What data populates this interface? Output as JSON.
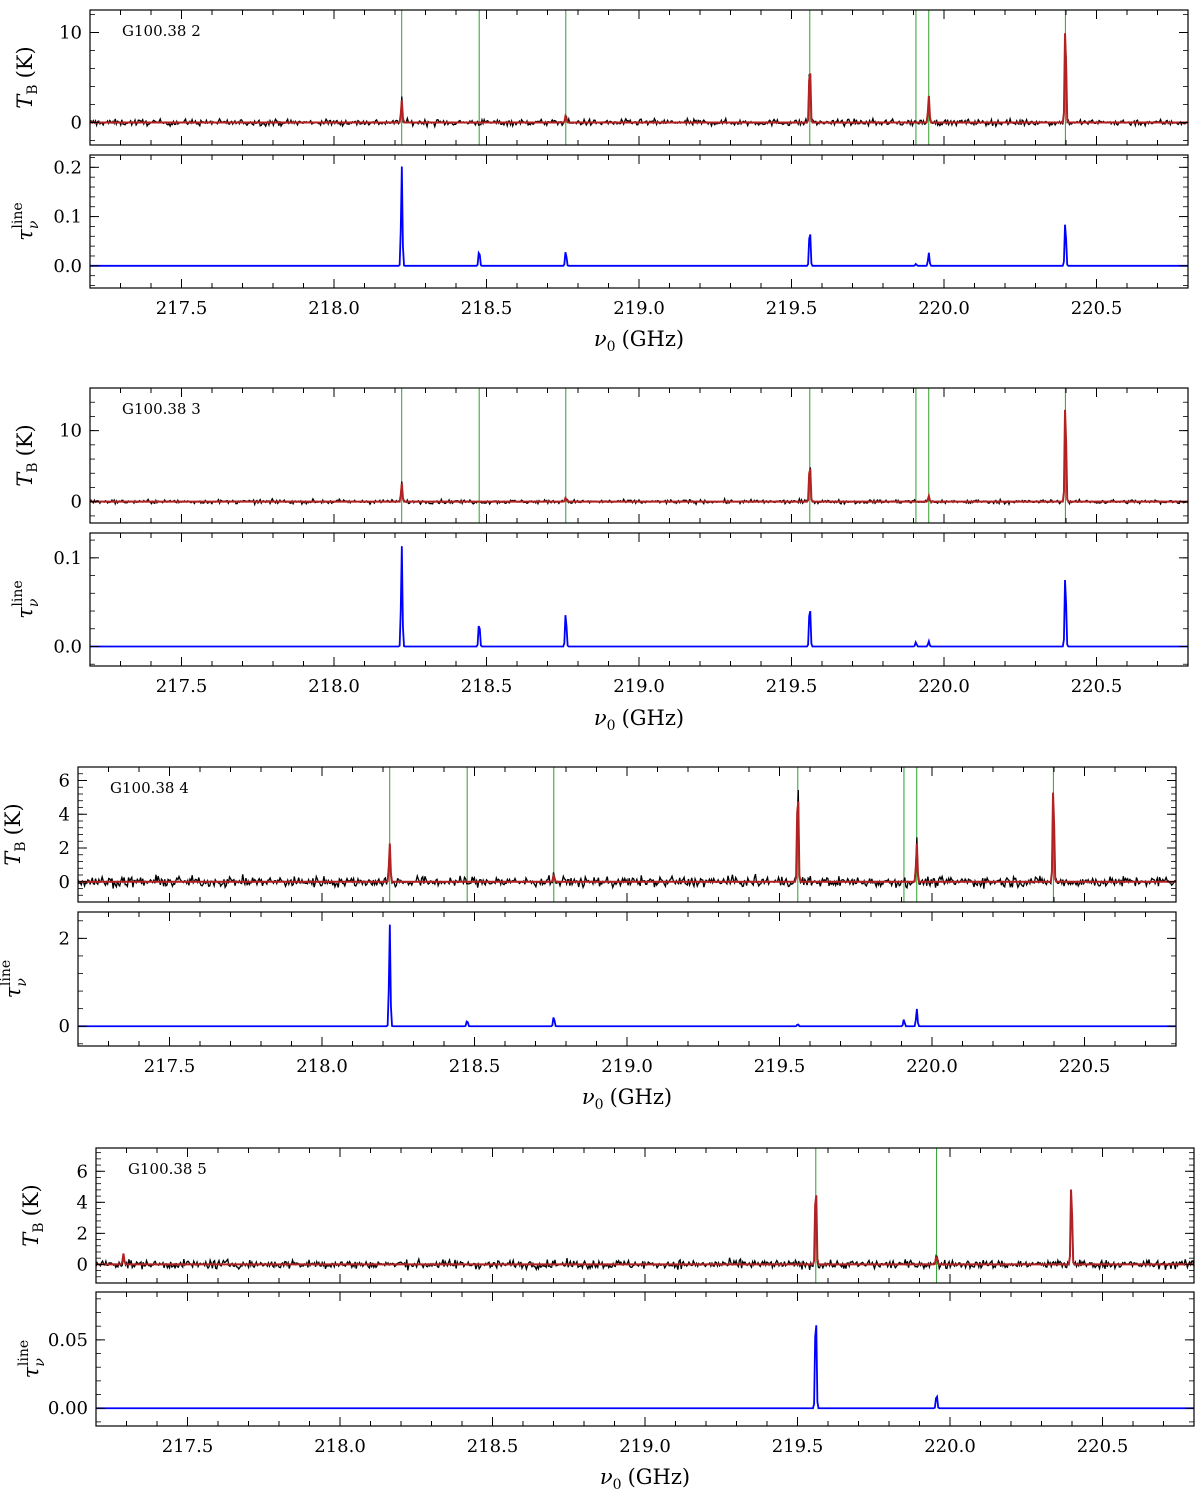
{
  "chart_data": [
    {
      "type": "line",
      "title": "G100.38 2",
      "xlabel_main": "ν",
      "xlabel_sub": "0",
      "xlabel_unit": "(GHz)",
      "xlim": [
        217.2,
        220.8
      ],
      "xticks": [
        "217.5",
        "218.0",
        "218.5",
        "219.0",
        "219.5",
        "220.0",
        "220.5"
      ],
      "top": {
        "ylabel_main": "T",
        "ylabel_sub": "B",
        "ylabel_unit": "(K)",
        "ylim": [
          -2.5,
          12.5
        ],
        "yticks": [
          "0",
          "10"
        ],
        "noise": 0.25,
        "vlines": [
          218.222,
          218.476,
          218.76,
          219.56,
          219.908,
          219.95,
          220.398
        ],
        "series": [
          {
            "color": "#b22222",
            "peaks": [
              [
                218.222,
                2.5
              ],
              [
                218.76,
                0.8
              ],
              [
                219.56,
                7.1
              ],
              [
                219.95,
                3.0
              ],
              [
                220.398,
                11.5
              ]
            ]
          }
        ]
      },
      "bottom": {
        "ylabel_main": "τ",
        "ylabel_sub": "ν",
        "ylabel_sup": "line",
        "ylim": [
          -0.045,
          0.225
        ],
        "yticks": [
          "0.0",
          "0.1",
          "0.2"
        ],
        "series": [
          {
            "color": "#0000ff",
            "peaks": [
              [
                218.222,
                0.205
              ],
              [
                218.476,
                0.034
              ],
              [
                218.76,
                0.032
              ],
              [
                219.56,
                0.083
              ],
              [
                219.908,
                0.004
              ],
              [
                219.95,
                0.027
              ],
              [
                220.398,
                0.097
              ]
            ]
          }
        ]
      }
    },
    {
      "type": "line",
      "title": "G100.38 3",
      "xlabel_main": "ν",
      "xlabel_sub": "0",
      "xlabel_unit": "(GHz)",
      "xlim": [
        217.2,
        220.8
      ],
      "xticks": [
        "217.5",
        "218.0",
        "218.5",
        "219.0",
        "219.5",
        "220.0",
        "220.5"
      ],
      "top": {
        "ylabel_main": "T",
        "ylabel_sub": "B",
        "ylabel_unit": "(K)",
        "ylim": [
          -3,
          16
        ],
        "yticks": [
          "0",
          "10"
        ],
        "noise": 0.2,
        "vlines": [
          218.222,
          218.476,
          218.76,
          219.56,
          219.908,
          219.95,
          220.398
        ],
        "series": [
          {
            "color": "#b22222",
            "peaks": [
              [
                218.222,
                2.6
              ],
              [
                218.76,
                0.6
              ],
              [
                219.56,
                6.0
              ],
              [
                219.95,
                0.8
              ],
              [
                220.398,
                15.0
              ]
            ]
          }
        ]
      },
      "bottom": {
        "ylabel_main": "τ",
        "ylabel_sub": "ν",
        "ylabel_sup": "line",
        "ylim": [
          -0.022,
          0.128
        ],
        "yticks": [
          "0.0",
          "0.1"
        ],
        "series": [
          {
            "color": "#0000ff",
            "peaks": [
              [
                218.222,
                0.115
              ],
              [
                218.476,
                0.03
              ],
              [
                218.76,
                0.041
              ],
              [
                219.56,
                0.052
              ],
              [
                219.908,
                0.005
              ],
              [
                219.95,
                0.006
              ],
              [
                220.398,
                0.087
              ]
            ]
          }
        ]
      }
    },
    {
      "type": "line",
      "title": "G100.38 4",
      "xlabel_main": "ν",
      "xlabel_sub": "0",
      "xlabel_unit": "(GHz)",
      "xlim": [
        217.2,
        220.8
      ],
      "xticks": [
        "217.5",
        "218.0",
        "218.5",
        "219.0",
        "219.5",
        "220.0",
        "220.5"
      ],
      "top": {
        "ylabel_main": "T",
        "ylabel_sub": "B",
        "ylabel_unit": "(K)",
        "ylim": [
          -1.2,
          6.8
        ],
        "yticks": [
          "0",
          "2",
          "4",
          "6"
        ],
        "noise": 0.22,
        "vlines": [
          218.222,
          218.476,
          218.76,
          219.56,
          219.908,
          219.95,
          220.398
        ],
        "series": [
          {
            "color": "#b22222",
            "peaks": [
              [
                218.222,
                2.3
              ],
              [
                218.76,
                0.4
              ],
              [
                219.56,
                6.2
              ],
              [
                219.95,
                2.3
              ],
              [
                220.398,
                6.1
              ]
            ]
          }
        ]
      },
      "bottom": {
        "ylabel_main": "τ",
        "ylabel_sub": "ν",
        "ylabel_sup": "line",
        "ylim": [
          -0.45,
          2.6
        ],
        "yticks": [
          "0",
          "2"
        ],
        "series": [
          {
            "color": "#0000ff",
            "peaks": [
              [
                218.222,
                2.35
              ],
              [
                218.476,
                0.14
              ],
              [
                218.76,
                0.23
              ],
              [
                219.56,
                0.05
              ],
              [
                219.908,
                0.16
              ],
              [
                219.95,
                0.4
              ]
            ]
          }
        ]
      }
    },
    {
      "type": "line",
      "title": "G100.38 5",
      "xlabel_main": "ν",
      "xlabel_sub": "0",
      "xlabel_unit": "(GHz)",
      "xlim": [
        217.2,
        220.8
      ],
      "xticks": [
        "217.5",
        "218.0",
        "218.5",
        "219.0",
        "219.5",
        "220.0",
        "220.5"
      ],
      "top": {
        "ylabel_main": "T",
        "ylabel_sub": "B",
        "ylabel_unit": "(K)",
        "ylim": [
          -1.2,
          7.5
        ],
        "yticks": [
          "0",
          "2",
          "4",
          "6"
        ],
        "noise": 0.2,
        "vlines": [
          219.56,
          219.956
        ],
        "series": [
          {
            "color": "#b22222",
            "peaks": [
              [
                217.29,
                0.7
              ],
              [
                219.56,
                5.8
              ],
              [
                219.956,
                0.6
              ],
              [
                220.398,
                5.6
              ]
            ]
          }
        ]
      },
      "bottom": {
        "ylabel_main": "τ",
        "ylabel_sub": "ν",
        "ylabel_sup": "line",
        "ylim": [
          -0.013,
          0.085
        ],
        "yticks": [
          "0.00",
          "0.05"
        ],
        "series": [
          {
            "color": "#0000ff",
            "peaks": [
              [
                219.56,
                0.079
              ],
              [
                219.956,
                0.011
              ]
            ]
          }
        ]
      }
    }
  ],
  "colors": {
    "observed": "#000000",
    "model_tb": "#b22222",
    "model_tau": "#0000ff",
    "line_markers": "#2ca02c"
  }
}
